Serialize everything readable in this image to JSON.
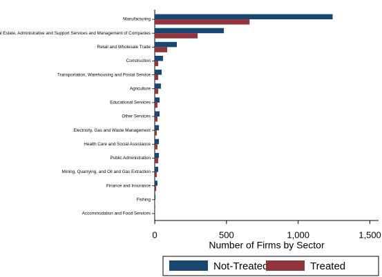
{
  "chart_data": {
    "type": "hbar",
    "xlabel": "Number of Firms by Sector",
    "categories": [
      "Manufacturing",
      "Real Estate, Administrative and Support Services and Management of Companies",
      "Retail and Wholesale Trade",
      "Construction",
      "Transportation, Warehousing and Postal Service",
      "Agriculture",
      "Educational Services",
      "Other Services",
      "Electricity, Gas and Waste Management",
      "Health Care and Social Assistance",
      "Public Administration",
      "Mining, Quarrying, and Oil and Gas Extraction",
      "Finance and Insurance",
      "Fishing",
      "Accommodation and Food Services"
    ],
    "series": [
      {
        "name": "Not-Treated",
        "color": "#1a476f",
        "values": [
          1240,
          482,
          154,
          58,
          48,
          43,
          34,
          34,
          29,
          29,
          29,
          24,
          19,
          5,
          2
        ]
      },
      {
        "name": "Treated",
        "color": "#90353b",
        "values": [
          661,
          299,
          87,
          24,
          24,
          24,
          19,
          19,
          14,
          19,
          24,
          14,
          10,
          2,
          1
        ]
      }
    ],
    "xlim": [
      0,
      1560
    ],
    "xticks": [
      0,
      500,
      {
        "value": 1000,
        "label": "1,000"
      },
      {
        "value": 1500,
        "label": "1,500"
      }
    ]
  }
}
